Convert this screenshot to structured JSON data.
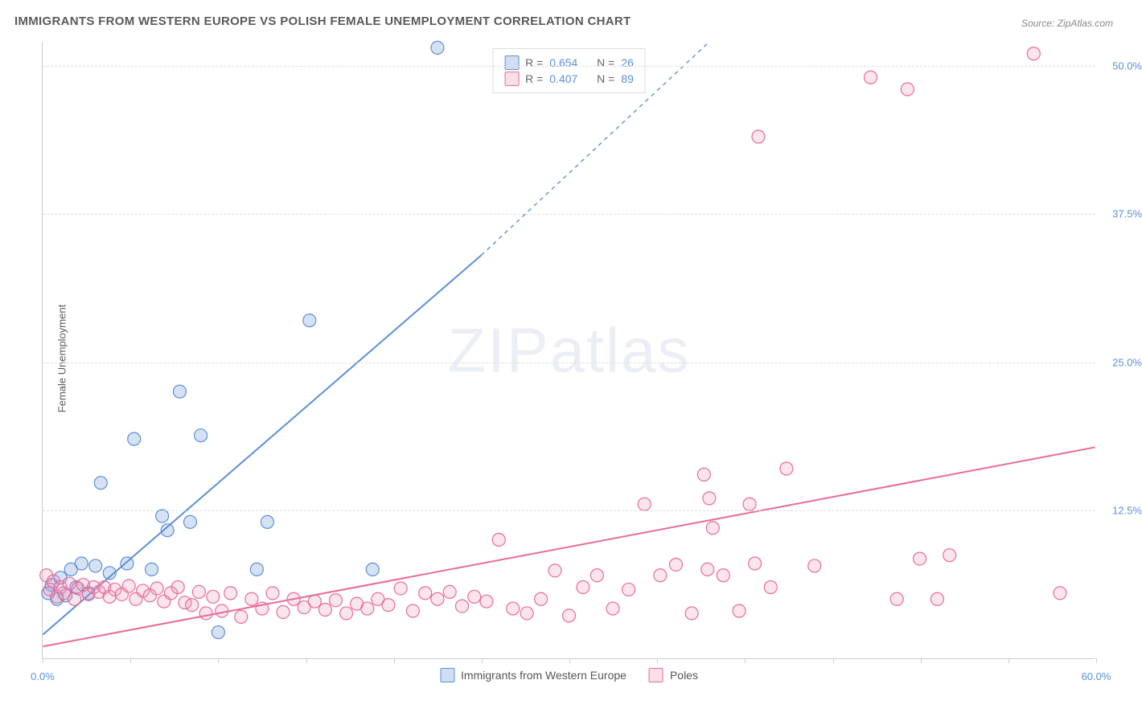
{
  "title": "IMMIGRANTS FROM WESTERN EUROPE VS POLISH FEMALE UNEMPLOYMENT CORRELATION CHART",
  "source": "Source: ZipAtlas.com",
  "y_axis_label": "Female Unemployment",
  "watermark": "ZIPatlas",
  "chart": {
    "type": "scatter",
    "xlim": [
      0,
      60
    ],
    "ylim": [
      0,
      52
    ],
    "x_tick_step": 5,
    "y_ticks": [
      12.5,
      25.0,
      37.5,
      50.0
    ],
    "y_tick_labels": [
      "12.5%",
      "25.0%",
      "37.5%",
      "50.0%"
    ],
    "x_min_label": "0.0%",
    "x_max_label": "60.0%",
    "background_color": "#ffffff",
    "grid_color": "#dddddd",
    "axis_color": "#cccccc",
    "tick_label_color": "#5b8fd6",
    "marker_radius": 8,
    "marker_fill_opacity": 0.25,
    "marker_stroke_width": 1.2,
    "trend_line_width": 2.0,
    "trend_line_dash": "5,5"
  },
  "series": [
    {
      "key": "western",
      "label": "Immigrants from Western Europe",
      "color": "#5b8fd6",
      "fill": "rgba(120,160,220,0.3)",
      "r_value": "0.654",
      "n_value": "26",
      "trend": {
        "x1": 0,
        "y1": 2.0,
        "x2_solid": 25,
        "y2_solid": 34.0,
        "x2_dash": 38,
        "y2_dash": 52.0
      },
      "points": [
        [
          0.3,
          5.5
        ],
        [
          0.5,
          6.2
        ],
        [
          0.8,
          5.0
        ],
        [
          1.0,
          6.8
        ],
        [
          1.3,
          5.3
        ],
        [
          1.6,
          7.5
        ],
        [
          1.9,
          6.0
        ],
        [
          2.2,
          8.0
        ],
        [
          2.6,
          5.5
        ],
        [
          3.0,
          7.8
        ],
        [
          3.3,
          14.8
        ],
        [
          3.8,
          7.2
        ],
        [
          4.8,
          8.0
        ],
        [
          5.2,
          18.5
        ],
        [
          6.2,
          7.5
        ],
        [
          6.8,
          12.0
        ],
        [
          7.1,
          10.8
        ],
        [
          7.8,
          22.5
        ],
        [
          8.4,
          11.5
        ],
        [
          9.0,
          18.8
        ],
        [
          10.0,
          2.2
        ],
        [
          12.2,
          7.5
        ],
        [
          12.8,
          11.5
        ],
        [
          15.2,
          28.5
        ],
        [
          18.8,
          7.5
        ],
        [
          22.5,
          51.5
        ]
      ]
    },
    {
      "key": "poles",
      "label": "Poles",
      "color": "#e76b9a",
      "fill": "rgba(240,150,180,0.25)",
      "r_value": "0.407",
      "n_value": "89",
      "trend": {
        "x1": 0,
        "y1": 1.0,
        "x2_solid": 60,
        "y2_solid": 17.8,
        "x2_dash": 60,
        "y2_dash": 17.8
      },
      "points": [
        [
          0.2,
          7.0
        ],
        [
          0.4,
          5.8
        ],
        [
          0.6,
          6.5
        ],
        [
          0.8,
          5.2
        ],
        [
          1.0,
          6.0
        ],
        [
          1.2,
          5.5
        ],
        [
          1.5,
          6.3
        ],
        [
          1.8,
          5.0
        ],
        [
          2.0,
          5.9
        ],
        [
          2.3,
          6.2
        ],
        [
          2.6,
          5.4
        ],
        [
          2.9,
          6.0
        ],
        [
          3.2,
          5.6
        ],
        [
          3.5,
          6.0
        ],
        [
          3.8,
          5.2
        ],
        [
          4.1,
          5.8
        ],
        [
          4.5,
          5.4
        ],
        [
          4.9,
          6.1
        ],
        [
          5.3,
          5.0
        ],
        [
          5.7,
          5.7
        ],
        [
          6.1,
          5.3
        ],
        [
          6.5,
          5.9
        ],
        [
          6.9,
          4.8
        ],
        [
          7.3,
          5.5
        ],
        [
          7.7,
          6.0
        ],
        [
          8.1,
          4.7
        ],
        [
          8.5,
          4.5
        ],
        [
          8.9,
          5.6
        ],
        [
          9.3,
          3.8
        ],
        [
          9.7,
          5.2
        ],
        [
          10.2,
          4.0
        ],
        [
          10.7,
          5.5
        ],
        [
          11.3,
          3.5
        ],
        [
          11.9,
          5.0
        ],
        [
          12.5,
          4.2
        ],
        [
          13.1,
          5.5
        ],
        [
          13.7,
          3.9
        ],
        [
          14.3,
          5.0
        ],
        [
          14.9,
          4.3
        ],
        [
          15.5,
          4.8
        ],
        [
          16.1,
          4.1
        ],
        [
          16.7,
          4.9
        ],
        [
          17.3,
          3.8
        ],
        [
          17.9,
          4.6
        ],
        [
          18.5,
          4.2
        ],
        [
          19.1,
          5.0
        ],
        [
          19.7,
          4.5
        ],
        [
          20.4,
          5.9
        ],
        [
          21.1,
          4.0
        ],
        [
          21.8,
          5.5
        ],
        [
          22.5,
          5.0
        ],
        [
          23.2,
          5.6
        ],
        [
          23.9,
          4.4
        ],
        [
          24.6,
          5.2
        ],
        [
          25.3,
          4.8
        ],
        [
          26.0,
          10.0
        ],
        [
          26.8,
          4.2
        ],
        [
          27.6,
          3.8
        ],
        [
          28.4,
          5.0
        ],
        [
          29.2,
          7.4
        ],
        [
          30.0,
          3.6
        ],
        [
          30.8,
          6.0
        ],
        [
          31.6,
          7.0
        ],
        [
          32.5,
          4.2
        ],
        [
          33.4,
          5.8
        ],
        [
          34.3,
          13.0
        ],
        [
          35.2,
          7.0
        ],
        [
          36.1,
          7.9
        ],
        [
          37.0,
          3.8
        ],
        [
          37.7,
          15.5
        ],
        [
          37.9,
          7.5
        ],
        [
          38.0,
          13.5
        ],
        [
          38.2,
          11.0
        ],
        [
          38.8,
          7.0
        ],
        [
          39.7,
          4.0
        ],
        [
          40.3,
          13.0
        ],
        [
          40.6,
          8.0
        ],
        [
          40.8,
          44.0
        ],
        [
          41.5,
          6.0
        ],
        [
          42.4,
          16.0
        ],
        [
          44.0,
          7.8
        ],
        [
          47.2,
          49.0
        ],
        [
          48.7,
          5.0
        ],
        [
          49.3,
          48.0
        ],
        [
          50.0,
          8.4
        ],
        [
          51.0,
          5.0
        ],
        [
          51.7,
          8.7
        ],
        [
          56.5,
          51.0
        ],
        [
          58.0,
          5.5
        ]
      ]
    }
  ],
  "legend_top": {
    "r_label": "R =",
    "n_label": "N ="
  }
}
